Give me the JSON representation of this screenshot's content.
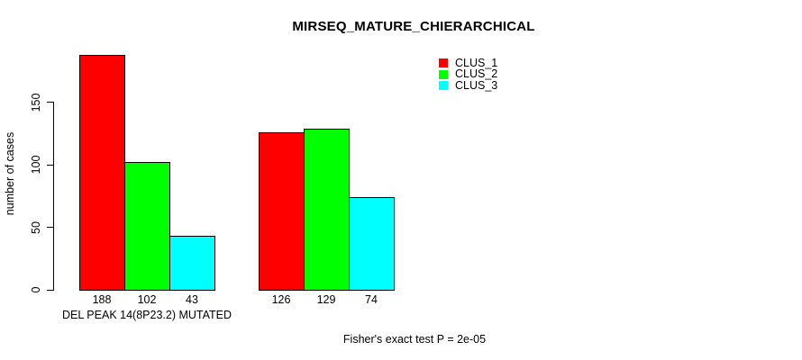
{
  "chart_data": {
    "type": "bar",
    "title": "MIRSEQ_MATURE_CHIERARCHICAL",
    "ylabel": "number of cases",
    "xlabel": "",
    "categories": [
      "DEL PEAK 14(8P23.2) MUTATED",
      ""
    ],
    "series": [
      {
        "name": "CLUS_1",
        "color": "#ff0000",
        "values": [
          188,
          126
        ]
      },
      {
        "name": "CLUS_2",
        "color": "#00ff00",
        "values": [
          102,
          129
        ]
      },
      {
        "name": "CLUS_3",
        "color": "#00ffff",
        "values": [
          43,
          74
        ]
      }
    ],
    "yticks": [
      0,
      50,
      100,
      150
    ],
    "ylim": [
      0,
      195
    ],
    "grid": false,
    "legend_position": "top-right",
    "show_value_labels": true,
    "annotation": "Fisher's exact test P = 2e-05"
  }
}
